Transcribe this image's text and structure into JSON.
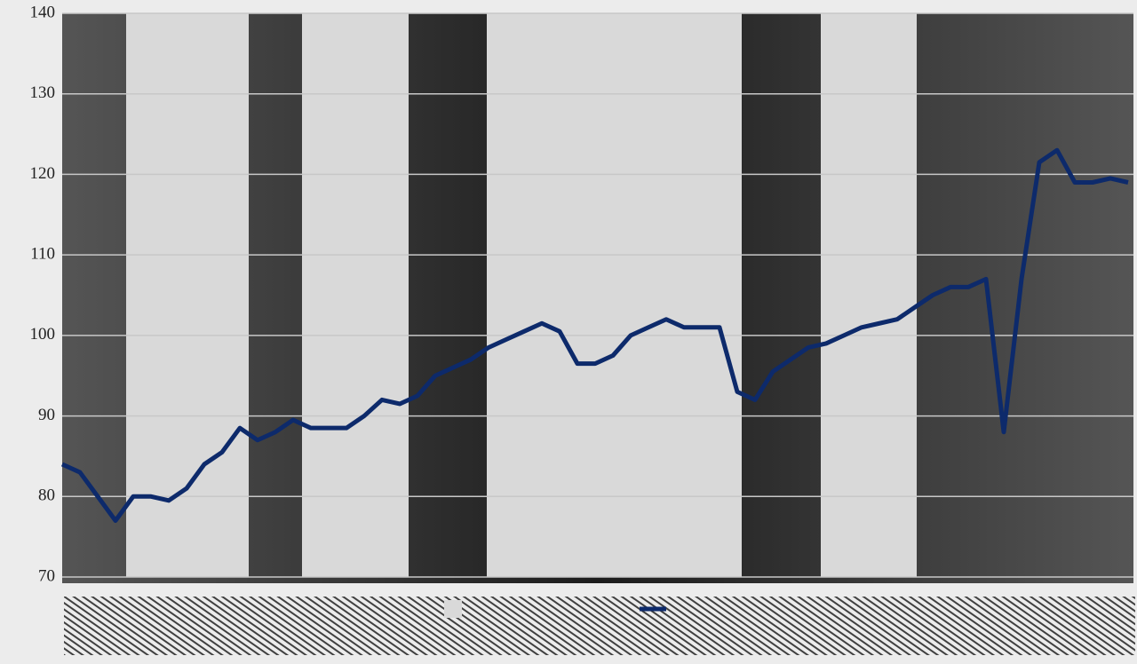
{
  "chart_data": {
    "type": "line",
    "series": [
      {
        "color": "#0d2a6b",
        "values": [
          84,
          83,
          80,
          77,
          80,
          80,
          79.5,
          81,
          84,
          85.5,
          88.5,
          87,
          88,
          89.5,
          88.5,
          88.5,
          88.5,
          90,
          92,
          91.5,
          92.5,
          95,
          96,
          97,
          98.5,
          99.5,
          100.5,
          101.5,
          100.5,
          96.5,
          96.5,
          97.5,
          100,
          101,
          102,
          101,
          101,
          101,
          93,
          92,
          95.5,
          97,
          98.5,
          99,
          100,
          101,
          101.5,
          102,
          103.5,
          105,
          106,
          106,
          107,
          88,
          107,
          121.5,
          123,
          119,
          119,
          119.5,
          119
        ]
      }
    ],
    "shaded_bands": [
      [
        3.6,
        10.5
      ],
      [
        13.5,
        19.5
      ],
      [
        23.9,
        38.25
      ],
      [
        42.7,
        48.1
      ]
    ],
    "band_color": "#d9d9d9",
    "ylim": [
      70,
      140
    ],
    "yticks": [
      70,
      80,
      90,
      100,
      110,
      120,
      130,
      140
    ],
    "grid": true
  }
}
